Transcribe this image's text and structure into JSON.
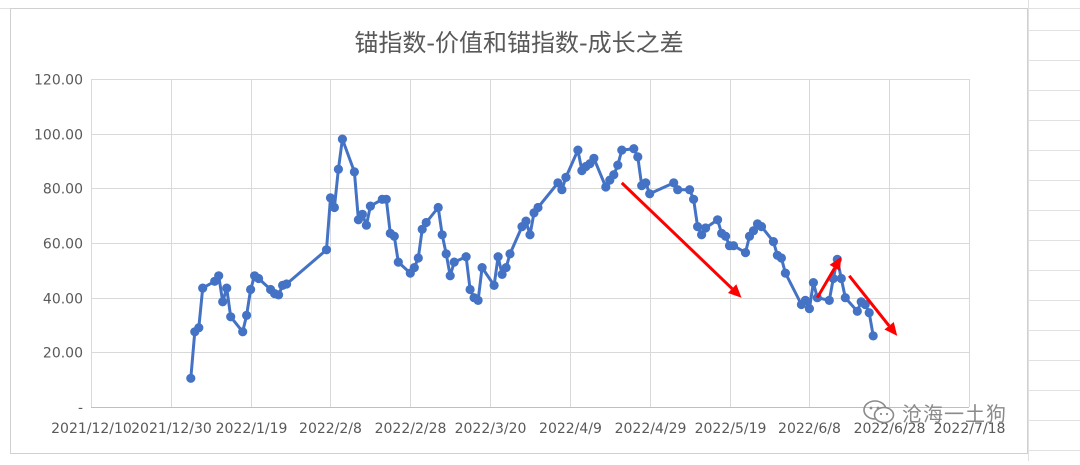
{
  "chart_data": {
    "type": "line",
    "title": "锚指数-价值和锚指数-成长之差",
    "ylim": [
      0,
      120
    ],
    "yticks": [
      0,
      20,
      40,
      60,
      80,
      100,
      120
    ],
    "ytick_labels": [
      "-",
      "20.00",
      "40.00",
      "60.00",
      "80.00",
      "100.00",
      "120.00"
    ],
    "xlim": [
      "2021-12-10",
      "2022-07-18"
    ],
    "xtick_labels": [
      "2021/12/10",
      "2021/12/30",
      "2022/1/19",
      "2022/2/8",
      "2022/2/28",
      "2022/3/20",
      "2022/4/9",
      "2022/4/29",
      "2022/5/19",
      "2022/6/8",
      "2022/6/28",
      "2022/7/18"
    ],
    "grid": true,
    "legend": "none",
    "series": [
      {
        "color": "#4472c4",
        "x": [
          "2022-01-04",
          "2022-01-05",
          "2022-01-06",
          "2022-01-07",
          "2022-01-10",
          "2022-01-11",
          "2022-01-12",
          "2022-01-13",
          "2022-01-14",
          "2022-01-17",
          "2022-01-18",
          "2022-01-19",
          "2022-01-20",
          "2022-01-21",
          "2022-01-24",
          "2022-01-25",
          "2022-01-26",
          "2022-01-27",
          "2022-01-28",
          "2022-02-07",
          "2022-02-08",
          "2022-02-09",
          "2022-02-10",
          "2022-02-11",
          "2022-02-14",
          "2022-02-15",
          "2022-02-16",
          "2022-02-17",
          "2022-02-18",
          "2022-02-21",
          "2022-02-22",
          "2022-02-23",
          "2022-02-24",
          "2022-02-25",
          "2022-02-28",
          "2022-03-01",
          "2022-03-02",
          "2022-03-03",
          "2022-03-04",
          "2022-03-07",
          "2022-03-08",
          "2022-03-09",
          "2022-03-10",
          "2022-03-11",
          "2022-03-14",
          "2022-03-15",
          "2022-03-16",
          "2022-03-17",
          "2022-03-18",
          "2022-03-21",
          "2022-03-22",
          "2022-03-23",
          "2022-03-24",
          "2022-03-25",
          "2022-03-28",
          "2022-03-29",
          "2022-03-30",
          "2022-03-31",
          "2022-04-01",
          "2022-04-06",
          "2022-04-07",
          "2022-04-08",
          "2022-04-11",
          "2022-04-12",
          "2022-04-13",
          "2022-04-14",
          "2022-04-15",
          "2022-04-18",
          "2022-04-19",
          "2022-04-20",
          "2022-04-21",
          "2022-04-22",
          "2022-04-25",
          "2022-04-26",
          "2022-04-27",
          "2022-04-28",
          "2022-04-29",
          "2022-05-05",
          "2022-05-06",
          "2022-05-09",
          "2022-05-10",
          "2022-05-11",
          "2022-05-12",
          "2022-05-13",
          "2022-05-16",
          "2022-05-17",
          "2022-05-18",
          "2022-05-19",
          "2022-05-20",
          "2022-05-23",
          "2022-05-24",
          "2022-05-25",
          "2022-05-26",
          "2022-05-27",
          "2022-05-30",
          "2022-05-31",
          "2022-06-01",
          "2022-06-02",
          "2022-06-06",
          "2022-06-07",
          "2022-06-08",
          "2022-06-09",
          "2022-06-10",
          "2022-06-13",
          "2022-06-14",
          "2022-06-15",
          "2022-06-16",
          "2022-06-17",
          "2022-06-20",
          "2022-06-21",
          "2022-06-22",
          "2022-06-23",
          "2022-06-24"
        ],
        "y": [
          10.5,
          27.5,
          29,
          43.5,
          46,
          48,
          38.5,
          43.5,
          33,
          27.5,
          33.5,
          43,
          48,
          47,
          43,
          41.5,
          41,
          44.5,
          45,
          57.5,
          76.5,
          73,
          87,
          98,
          86,
          68.5,
          70.5,
          66.5,
          73.5,
          76,
          76,
          63.5,
          62.5,
          53,
          49,
          51,
          54.5,
          65,
          67.5,
          73,
          63,
          56,
          48,
          53,
          55,
          43,
          40,
          39,
          51,
          44.5,
          55,
          48.5,
          51,
          56,
          66,
          68,
          63,
          71,
          73,
          82,
          79.5,
          84,
          94,
          86.5,
          88,
          89,
          91,
          80.5,
          83,
          85,
          88.5,
          94,
          94.5,
          91.5,
          81,
          82,
          78,
          82,
          79.5,
          79.5,
          76,
          66,
          63,
          65.5,
          68.5,
          63.5,
          62.5,
          59,
          59,
          56.5,
          62.5,
          64.5,
          67,
          66,
          60.5,
          55.5,
          54.5,
          49,
          37.5,
          39,
          36,
          45.5,
          40,
          39,
          47,
          54,
          47,
          40,
          35,
          38.5,
          37.5,
          34.5,
          26
        ]
      }
    ],
    "annotations": [
      {
        "kind": "arrow",
        "color": "#ff0000",
        "from": [
          "2022-04-22",
          82
        ],
        "to": [
          "2022-05-22",
          40
        ]
      },
      {
        "kind": "arrow",
        "color": "#ff0000",
        "from": [
          "2022-06-10",
          40
        ],
        "to": [
          "2022-06-16",
          55
        ]
      },
      {
        "kind": "arrow",
        "color": "#ff0000",
        "from": [
          "2022-06-18",
          48
        ],
        "to": [
          "2022-06-30",
          26
        ]
      }
    ]
  },
  "watermark": {
    "icon": "wechat-icon",
    "text": "沧海一土狗"
  }
}
